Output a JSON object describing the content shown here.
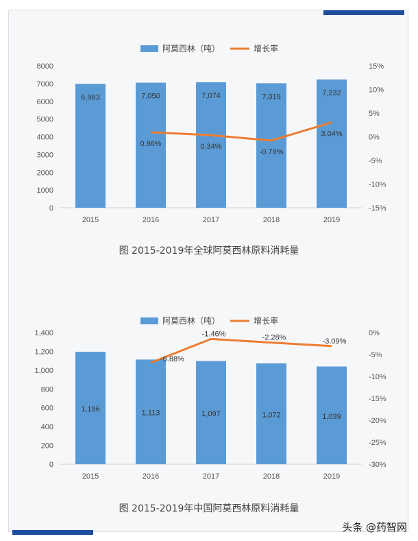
{
  "colors": {
    "bar": "#5b9bd5",
    "line": "#ed7d31",
    "frame": "#1f4e9f"
  },
  "chart_data": [
    {
      "type": "bar",
      "title": "图 2015-2019年全球阿莫西林原料消耗量",
      "categories": [
        "2015",
        "2016",
        "2017",
        "2018",
        "2019"
      ],
      "series": [
        {
          "name": "阿莫西林（吨）",
          "type": "bar",
          "axis": "left",
          "values": [
            6983,
            7050,
            7074,
            7019,
            7232
          ],
          "labels": [
            "6,983",
            "7,050",
            "7,074",
            "7,019",
            "7,232"
          ]
        },
        {
          "name": "增长率",
          "type": "line",
          "axis": "right",
          "values": [
            null,
            0.96,
            0.34,
            -0.79,
            3.04
          ],
          "labels": [
            "",
            "0.96%",
            "0.34%",
            "-0.79%",
            "3.04%"
          ]
        }
      ],
      "ylim": [
        0,
        8000
      ],
      "y_ticks": [
        "0",
        "1000",
        "2000",
        "3000",
        "4000",
        "5000",
        "6000",
        "7000",
        "8000"
      ],
      "y2lim": [
        -15,
        15
      ],
      "y2_ticks": [
        "-15%",
        "-10%",
        "-5%",
        "0%",
        "5%",
        "10%",
        "15%"
      ],
      "legend": "top-center",
      "grid": false
    },
    {
      "type": "bar",
      "title": "图 2015-2019年中国阿莫西林原料消耗量",
      "categories": [
        "2015",
        "2016",
        "2017",
        "2018",
        "2019"
      ],
      "series": [
        {
          "name": "阿莫西林（吨）",
          "type": "bar",
          "axis": "left",
          "values": [
            1196,
            1113,
            1097,
            1072,
            1039
          ],
          "labels": [
            "1,196",
            "1,113",
            "1,097",
            "1,072",
            "1,039"
          ]
        },
        {
          "name": "增长率",
          "type": "line",
          "axis": "right",
          "values": [
            null,
            -6.88,
            -1.46,
            -2.28,
            -3.09
          ],
          "labels": [
            "",
            "-6.88%",
            "-1.46%",
            "-2.28%",
            "-3.09%"
          ]
        }
      ],
      "ylim": [
        0,
        1400
      ],
      "y_ticks": [
        "0",
        "200",
        "400",
        "600",
        "800",
        "1,000",
        "1,200",
        "1,400"
      ],
      "y2lim": [
        -30,
        0
      ],
      "y2_ticks": [
        "-30%",
        "-25%",
        "-20%",
        "-15%",
        "-10%",
        "-5%",
        "0%"
      ],
      "legend": "top-center",
      "grid": false
    }
  ],
  "watermark": "头条 @药智网"
}
